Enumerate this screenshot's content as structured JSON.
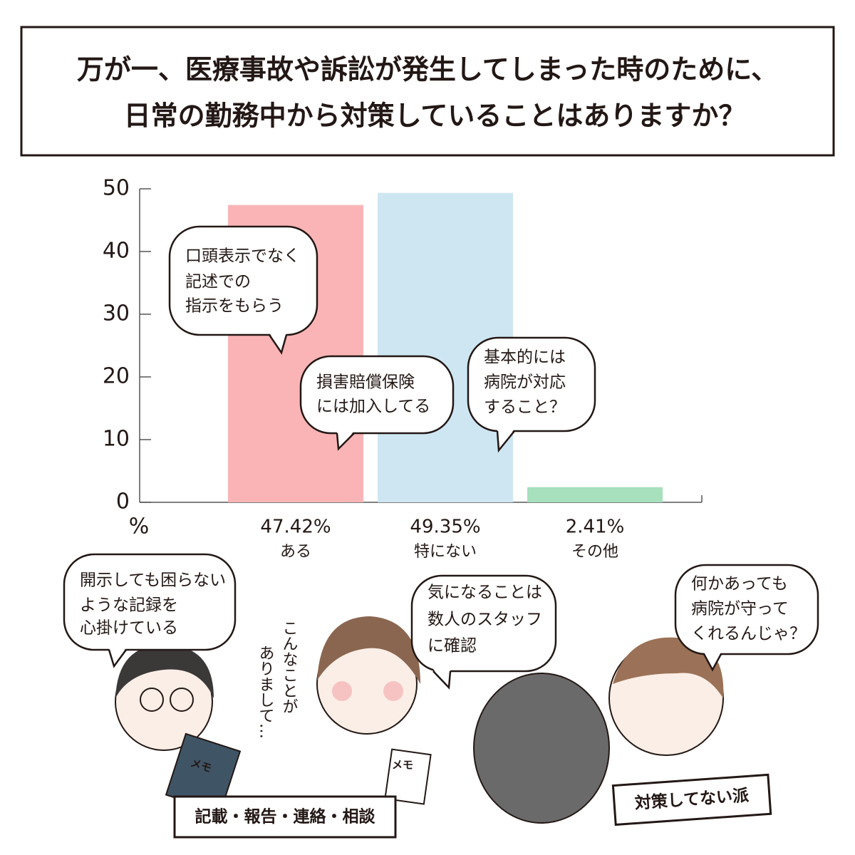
{
  "chart_data": {
    "type": "bar",
    "title_lines": [
      "万が一、医療事故や訴訟が発生してしまった時のために、",
      "日常の勤務中から対策していることはありますか？"
    ],
    "y_unit": "%",
    "categories": [
      "ある",
      "特にない",
      "その他"
    ],
    "values": [
      47.42,
      49.35,
      2.41
    ],
    "value_labels": [
      "47.42%",
      "49.35%",
      "2.41%"
    ],
    "colors": [
      "#fbb4b6",
      "#cde6f2",
      "#a6e0bd"
    ],
    "ylim": [
      0,
      50
    ],
    "yticks": [
      0,
      10,
      20,
      30,
      40,
      50
    ],
    "annotations": [
      {
        "lines": [
          "口頭表示でなく",
          "記述での",
          "指示をもらう"
        ]
      },
      {
        "lines": [
          "損害賠償保険",
          "には加入してる"
        ]
      },
      {
        "lines": [
          "基本的には",
          "病院が対応",
          "すること？"
        ]
      }
    ]
  },
  "illustration": {
    "speech": [
      {
        "lines": [
          "開示しても困らない",
          "ような記録を",
          "心掛けている"
        ]
      },
      {
        "lines": [
          "気になることは",
          "数人のスタッフ",
          "に確認"
        ]
      },
      {
        "lines": [
          "何かあっても",
          "病院が守って",
          "くれるんじゃ？"
        ]
      }
    ],
    "murmur": [
      "こんなことが",
      "ありまして…"
    ],
    "note": "メモ",
    "tags": [
      "記載・報告・連絡・相談",
      "対策してない派"
    ]
  }
}
